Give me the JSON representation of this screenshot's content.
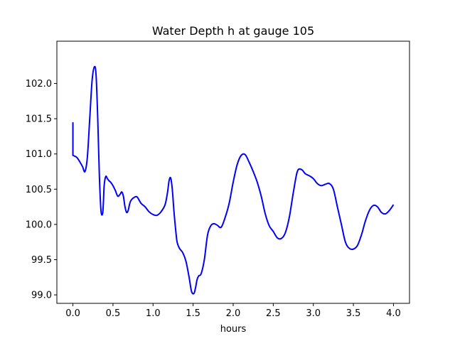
{
  "chart_data": {
    "type": "line",
    "title": "Water Depth h at gauge 105",
    "xlabel": "hours",
    "ylabel": "",
    "xlim": [
      -0.2,
      4.2
    ],
    "ylim": [
      98.88,
      102.6
    ],
    "xticks": [
      0.0,
      0.5,
      1.0,
      1.5,
      2.0,
      2.5,
      3.0,
      3.5,
      4.0
    ],
    "xtick_labels": [
      "0.0",
      "0.5",
      "1.0",
      "1.5",
      "2.0",
      "2.5",
      "3.0",
      "3.5",
      "4.0"
    ],
    "yticks": [
      99.0,
      99.5,
      100.0,
      100.5,
      101.0,
      101.5,
      102.0
    ],
    "ytick_labels": [
      "99.0",
      "99.5",
      "100.0",
      "100.5",
      "101.0",
      "101.5",
      "102.0"
    ],
    "grid": false,
    "series": [
      {
        "color": "#0000ff",
        "x": [
          0.0,
          0.0,
          0.02,
          0.05,
          0.08,
          0.12,
          0.15,
          0.18,
          0.21,
          0.24,
          0.27,
          0.29,
          0.31,
          0.33,
          0.35,
          0.37,
          0.38,
          0.39,
          0.41,
          0.43,
          0.45,
          0.47,
          0.5,
          0.53,
          0.56,
          0.59,
          0.61,
          0.63,
          0.65,
          0.67,
          0.69,
          0.71,
          0.73,
          0.76,
          0.8,
          0.85,
          0.9,
          0.95,
          1.0,
          1.05,
          1.1,
          1.15,
          1.18,
          1.2,
          1.22,
          1.24,
          1.26,
          1.28,
          1.3,
          1.33,
          1.37,
          1.41,
          1.45,
          1.48,
          1.51,
          1.53,
          1.55,
          1.57,
          1.6,
          1.64,
          1.68,
          1.72,
          1.76,
          1.8,
          1.85,
          1.9,
          1.95,
          2.0,
          2.05,
          2.1,
          2.15,
          2.2,
          2.25,
          2.3,
          2.35,
          2.4,
          2.45,
          2.5,
          2.55,
          2.6,
          2.65,
          2.7,
          2.75,
          2.8,
          2.85,
          2.9,
          2.95,
          3.0,
          3.05,
          3.1,
          3.15,
          3.2,
          3.25,
          3.3,
          3.35,
          3.4,
          3.45,
          3.5,
          3.55,
          3.6,
          3.65,
          3.7,
          3.75,
          3.8,
          3.85,
          3.9,
          3.95,
          4.0
        ],
        "y": [
          101.45,
          100.98,
          100.97,
          100.95,
          100.9,
          100.82,
          100.75,
          100.95,
          101.5,
          102.05,
          102.24,
          102.1,
          101.5,
          100.7,
          100.2,
          100.15,
          100.3,
          100.55,
          100.68,
          100.65,
          100.62,
          100.6,
          100.55,
          100.48,
          100.4,
          100.43,
          100.46,
          100.4,
          100.25,
          100.17,
          100.2,
          100.3,
          100.35,
          100.38,
          100.39,
          100.3,
          100.25,
          100.18,
          100.14,
          100.13,
          100.18,
          100.28,
          100.45,
          100.62,
          100.66,
          100.5,
          100.2,
          99.95,
          99.75,
          99.66,
          99.6,
          99.48,
          99.25,
          99.05,
          99.02,
          99.1,
          99.22,
          99.27,
          99.3,
          99.5,
          99.85,
          99.98,
          100.01,
          99.99,
          99.96,
          100.1,
          100.3,
          100.6,
          100.85,
          100.98,
          100.99,
          100.88,
          100.75,
          100.6,
          100.4,
          100.15,
          99.98,
          99.9,
          99.81,
          99.8,
          99.88,
          100.1,
          100.45,
          100.75,
          100.78,
          100.72,
          100.69,
          100.65,
          100.58,
          100.55,
          100.57,
          100.58,
          100.5,
          100.25,
          100.0,
          99.75,
          99.66,
          99.65,
          99.7,
          99.85,
          100.05,
          100.2,
          100.27,
          100.25,
          100.17,
          100.15,
          100.2,
          100.28
        ]
      }
    ]
  }
}
